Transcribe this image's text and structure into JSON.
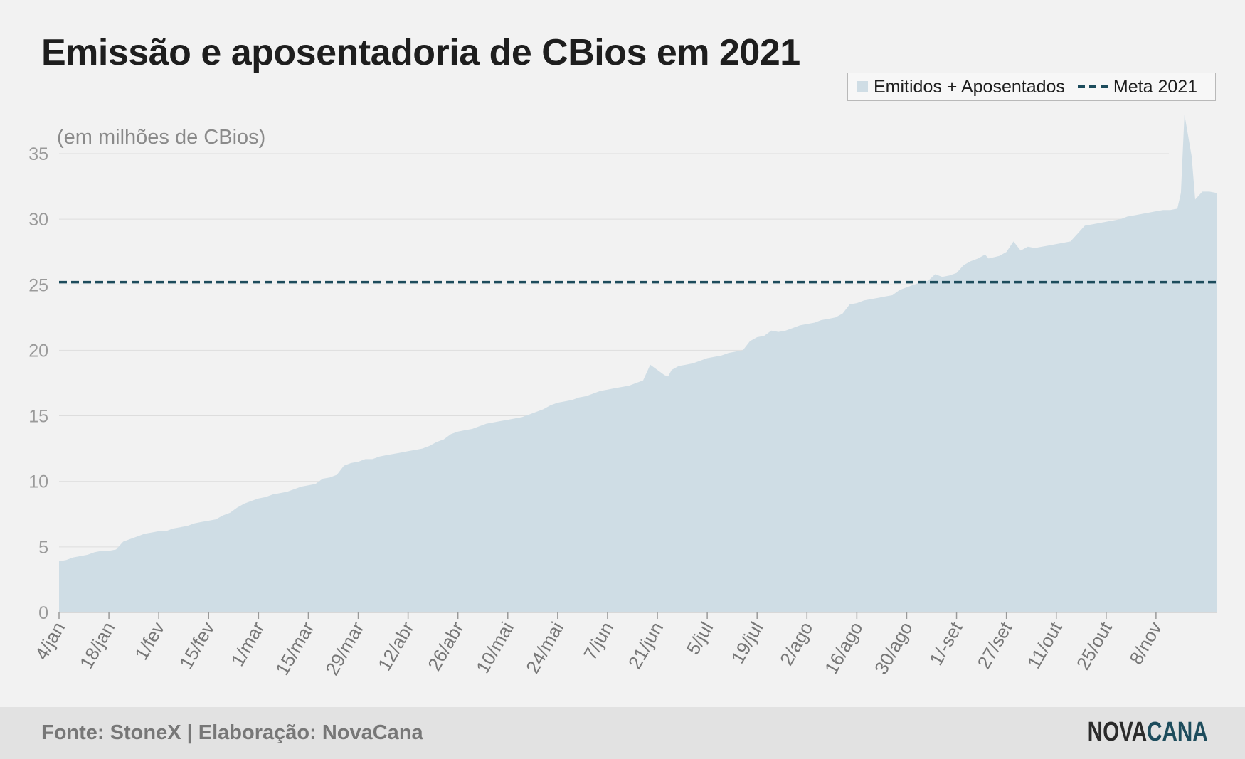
{
  "title": "Emissão e aposentadoria de CBios em 2021",
  "legend": {
    "area_label": "Emitidos + Aposentados",
    "line_label": "Meta 2021"
  },
  "unit_note": "(em milhões de CBios)",
  "footer": {
    "source": "Fonte: StoneX | Elaboração: NovaCana",
    "logo_part1": "NOVA",
    "logo_part2": "CANA"
  },
  "colors": {
    "area": "#cfdde5",
    "meta_line": "#1d4c5c",
    "grid": "#dddddd",
    "tick_text": "#777777"
  },
  "chart_data": {
    "type": "area",
    "ylabel": "(em milhões de CBios)",
    "ylim": [
      0,
      38
    ],
    "yticks": [
      0,
      5,
      10,
      15,
      20,
      25,
      30,
      35
    ],
    "grid": true,
    "legend_position": "top-right",
    "x_tick_labels": [
      "4/jan",
      "18/jan",
      "1/fev",
      "15/fev",
      "1/mar",
      "15/mar",
      "29/mar",
      "12/abr",
      "26/abr",
      "10/mai",
      "24/mai",
      "7/jun",
      "21/jun",
      "5/jul",
      "19/jul",
      "2/ago",
      "16/ago",
      "30/ago",
      "1/-set",
      "27/set",
      "11/out",
      "25/out",
      "8/nov"
    ],
    "x_tick_days": [
      0,
      14,
      28,
      42,
      56,
      70,
      84,
      98,
      112,
      126,
      140,
      154,
      168,
      182,
      196,
      210,
      224,
      238,
      252,
      266,
      280,
      294,
      308
    ],
    "x_range_days": [
      0,
      325
    ],
    "reference_line": {
      "name": "Meta 2021",
      "value": 25.2
    },
    "series": [
      {
        "name": "Emitidos + Aposentados",
        "points": [
          [
            0,
            3.9
          ],
          [
            2,
            4.0
          ],
          [
            4,
            4.2
          ],
          [
            6,
            4.3
          ],
          [
            8,
            4.4
          ],
          [
            10,
            4.6
          ],
          [
            12,
            4.7
          ],
          [
            14,
            4.7
          ],
          [
            16,
            4.8
          ],
          [
            18,
            5.4
          ],
          [
            20,
            5.6
          ],
          [
            22,
            5.8
          ],
          [
            24,
            6.0
          ],
          [
            26,
            6.1
          ],
          [
            28,
            6.2
          ],
          [
            30,
            6.2
          ],
          [
            32,
            6.4
          ],
          [
            34,
            6.5
          ],
          [
            36,
            6.6
          ],
          [
            38,
            6.8
          ],
          [
            40,
            6.9
          ],
          [
            42,
            7.0
          ],
          [
            44,
            7.1
          ],
          [
            46,
            7.4
          ],
          [
            48,
            7.6
          ],
          [
            50,
            8.0
          ],
          [
            52,
            8.3
          ],
          [
            54,
            8.5
          ],
          [
            56,
            8.7
          ],
          [
            58,
            8.8
          ],
          [
            60,
            9.0
          ],
          [
            62,
            9.1
          ],
          [
            64,
            9.2
          ],
          [
            66,
            9.4
          ],
          [
            68,
            9.6
          ],
          [
            70,
            9.7
          ],
          [
            72,
            9.8
          ],
          [
            74,
            10.2
          ],
          [
            76,
            10.3
          ],
          [
            78,
            10.5
          ],
          [
            80,
            11.2
          ],
          [
            82,
            11.4
          ],
          [
            84,
            11.5
          ],
          [
            86,
            11.7
          ],
          [
            88,
            11.7
          ],
          [
            90,
            11.9
          ],
          [
            92,
            12.0
          ],
          [
            94,
            12.1
          ],
          [
            96,
            12.2
          ],
          [
            98,
            12.3
          ],
          [
            100,
            12.4
          ],
          [
            102,
            12.5
          ],
          [
            104,
            12.7
          ],
          [
            106,
            13.0
          ],
          [
            108,
            13.2
          ],
          [
            110,
            13.6
          ],
          [
            112,
            13.8
          ],
          [
            114,
            13.9
          ],
          [
            116,
            14.0
          ],
          [
            118,
            14.2
          ],
          [
            120,
            14.4
          ],
          [
            122,
            14.5
          ],
          [
            124,
            14.6
          ],
          [
            126,
            14.7
          ],
          [
            128,
            14.8
          ],
          [
            130,
            14.9
          ],
          [
            132,
            15.1
          ],
          [
            134,
            15.3
          ],
          [
            136,
            15.5
          ],
          [
            138,
            15.8
          ],
          [
            140,
            16.0
          ],
          [
            142,
            16.1
          ],
          [
            144,
            16.2
          ],
          [
            146,
            16.4
          ],
          [
            148,
            16.5
          ],
          [
            150,
            16.7
          ],
          [
            152,
            16.9
          ],
          [
            154,
            17.0
          ],
          [
            156,
            17.1
          ],
          [
            158,
            17.2
          ],
          [
            160,
            17.3
          ],
          [
            162,
            17.5
          ],
          [
            164,
            17.7
          ],
          [
            166,
            18.9
          ],
          [
            168,
            18.5
          ],
          [
            170,
            18.1
          ],
          [
            171,
            18.0
          ],
          [
            172,
            18.5
          ],
          [
            174,
            18.8
          ],
          [
            176,
            18.9
          ],
          [
            178,
            19.0
          ],
          [
            180,
            19.2
          ],
          [
            182,
            19.4
          ],
          [
            184,
            19.5
          ],
          [
            186,
            19.6
          ],
          [
            188,
            19.8
          ],
          [
            190,
            19.9
          ],
          [
            192,
            20.0
          ],
          [
            194,
            20.7
          ],
          [
            196,
            21.0
          ],
          [
            198,
            21.1
          ],
          [
            200,
            21.5
          ],
          [
            202,
            21.4
          ],
          [
            204,
            21.5
          ],
          [
            206,
            21.7
          ],
          [
            208,
            21.9
          ],
          [
            210,
            22.0
          ],
          [
            212,
            22.1
          ],
          [
            214,
            22.3
          ],
          [
            216,
            22.4
          ],
          [
            218,
            22.5
          ],
          [
            220,
            22.8
          ],
          [
            222,
            23.5
          ],
          [
            224,
            23.6
          ],
          [
            226,
            23.8
          ],
          [
            228,
            23.9
          ],
          [
            230,
            24.0
          ],
          [
            232,
            24.1
          ],
          [
            234,
            24.2
          ],
          [
            236,
            24.6
          ],
          [
            238,
            24.8
          ],
          [
            240,
            25.0
          ],
          [
            242,
            25.2
          ],
          [
            244,
            25.3
          ],
          [
            246,
            25.8
          ],
          [
            248,
            25.6
          ],
          [
            250,
            25.7
          ],
          [
            252,
            25.9
          ],
          [
            254,
            26.5
          ],
          [
            256,
            26.8
          ],
          [
            258,
            27.0
          ],
          [
            260,
            27.3
          ],
          [
            261,
            27.0
          ],
          [
            264,
            27.2
          ],
          [
            266,
            27.5
          ],
          [
            268,
            28.3
          ],
          [
            270,
            27.6
          ],
          [
            272,
            27.9
          ],
          [
            274,
            27.8
          ],
          [
            276,
            27.9
          ],
          [
            278,
            28.0
          ],
          [
            280,
            28.1
          ],
          [
            282,
            28.2
          ],
          [
            284,
            28.3
          ],
          [
            286,
            28.9
          ],
          [
            288,
            29.5
          ],
          [
            290,
            29.6
          ],
          [
            292,
            29.7
          ],
          [
            294,
            29.8
          ],
          [
            296,
            29.9
          ],
          [
            298,
            30.0
          ],
          [
            300,
            30.2
          ],
          [
            302,
            30.3
          ],
          [
            304,
            30.4
          ],
          [
            306,
            30.5
          ],
          [
            308,
            30.6
          ],
          [
            310,
            30.7
          ],
          [
            312,
            30.7
          ],
          [
            314,
            30.8
          ],
          [
            315,
            32.0
          ],
          [
            316,
            38.0
          ],
          [
            318,
            34.8
          ],
          [
            319,
            31.5
          ],
          [
            321,
            32.1
          ],
          [
            323,
            32.1
          ],
          [
            325,
            32.0
          ]
        ]
      }
    ]
  }
}
